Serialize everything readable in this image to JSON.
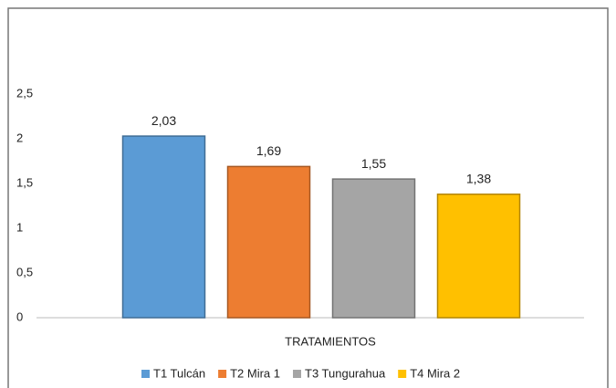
{
  "chart_data": {
    "type": "bar",
    "categories": [
      "TRATAMIENTOS"
    ],
    "series": [
      {
        "name": "T1 Tulcán",
        "color": "#5b9bd5",
        "values": [
          2.03
        ],
        "value_labels": [
          "2,03"
        ]
      },
      {
        "name": "T2 Mira 1",
        "color": "#ed7d31",
        "values": [
          1.69
        ],
        "value_labels": [
          "1,69"
        ]
      },
      {
        "name": "T3 Tungurahua",
        "color": "#a5a5a5",
        "values": [
          1.55
        ],
        "value_labels": [
          "1,55"
        ]
      },
      {
        "name": "T4 Mira 2",
        "color": "#ffc000",
        "values": [
          1.38
        ],
        "value_labels": [
          "1,38"
        ]
      }
    ],
    "ylim": [
      0,
      2.5
    ],
    "yticks": [
      0,
      {
        "value": 0.5,
        "label": "0,5"
      },
      1,
      {
        "value": 1.5,
        "label": "1,5"
      },
      2,
      {
        "value": 2.5,
        "label": "2,5"
      }
    ],
    "legend": "bottom"
  }
}
